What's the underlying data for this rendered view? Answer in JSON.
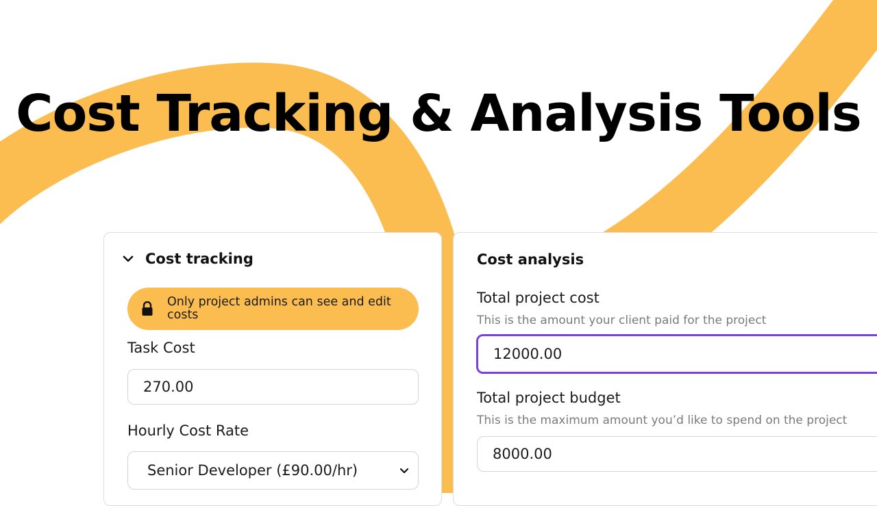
{
  "headline": "Cost Tracking & Analysis Tools",
  "colors": {
    "accent_yellow": "#fbbd4f",
    "focus_purple": "#7b3fe4"
  },
  "cost_tracking": {
    "title": "Cost tracking",
    "collapse_icon": "chevron-down-icon",
    "notice_icon": "lock-icon",
    "notice": "Only project admins can see and edit costs",
    "task_cost_label": "Task Cost",
    "task_cost_value": "270.00",
    "hourly_rate_label": "Hourly Cost Rate",
    "hourly_rate_selected": "Senior Developer (£90.00/hr)"
  },
  "cost_analysis": {
    "title": "Cost analysis",
    "total_cost_label": "Total project cost",
    "total_cost_hint": "This is the amount your client paid for the project",
    "total_cost_value": "12000.00",
    "total_budget_label": "Total project budget",
    "total_budget_hint": "This is the maximum amount you’d like to spend on the project",
    "total_budget_value": "8000.00"
  }
}
